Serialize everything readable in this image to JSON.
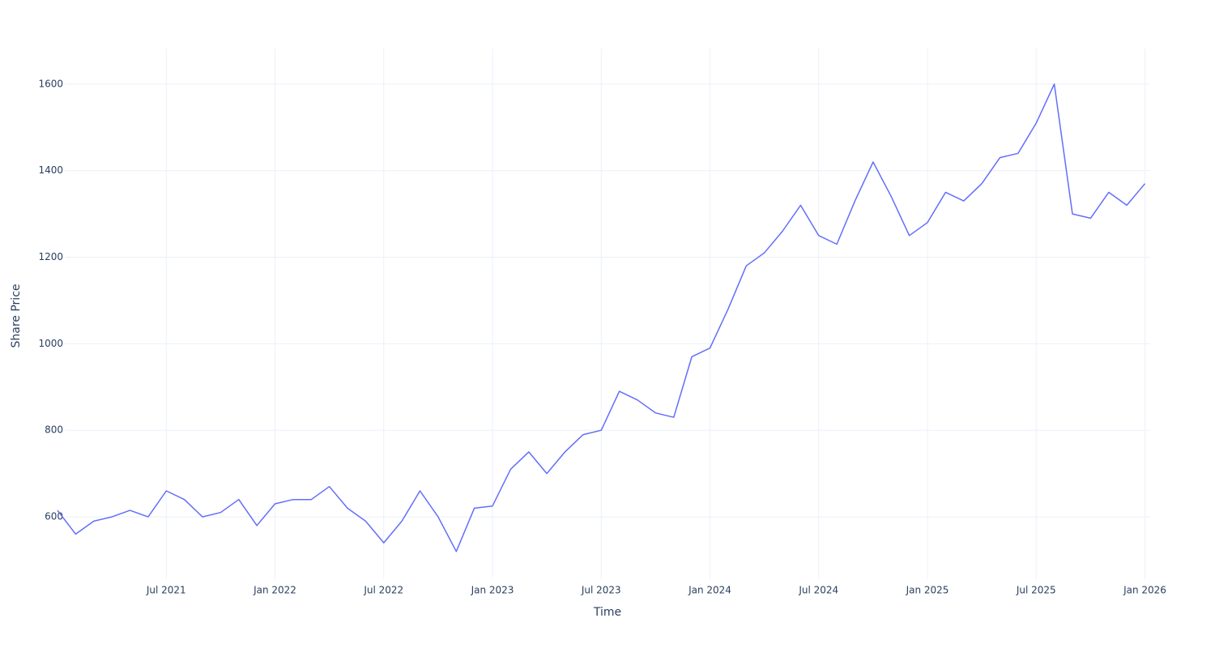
{
  "chart_data": {
    "type": "line",
    "x_label": "Time",
    "y_label": "Share Price",
    "x": [
      "2021-01",
      "2021-02",
      "2021-03",
      "2021-04",
      "2021-05",
      "2021-06",
      "2021-07",
      "2021-08",
      "2021-09",
      "2021-10",
      "2021-11",
      "2021-12",
      "2022-01",
      "2022-02",
      "2022-03",
      "2022-04",
      "2022-05",
      "2022-06",
      "2022-07",
      "2022-08",
      "2022-09",
      "2022-10",
      "2022-11",
      "2022-12",
      "2023-01",
      "2023-02",
      "2023-03",
      "2023-04",
      "2023-05",
      "2023-06",
      "2023-07",
      "2023-08",
      "2023-09",
      "2023-10",
      "2023-11",
      "2023-12",
      "2024-01",
      "2024-02",
      "2024-03",
      "2024-04",
      "2024-05",
      "2024-06",
      "2024-07",
      "2024-08",
      "2024-09",
      "2024-10",
      "2024-11",
      "2024-12",
      "2025-01",
      "2025-02",
      "2025-03",
      "2025-04",
      "2025-05",
      "2025-06",
      "2025-07",
      "2025-08",
      "2025-09",
      "2025-10",
      "2025-11",
      "2025-12",
      "2026-01"
    ],
    "series": [
      {
        "name": "Share Price",
        "color": "#636efa",
        "values": [
          615,
          560,
          590,
          600,
          615,
          600,
          660,
          640,
          600,
          610,
          640,
          580,
          630,
          640,
          640,
          670,
          620,
          590,
          540,
          590,
          660,
          600,
          520,
          620,
          625,
          710,
          750,
          700,
          750,
          790,
          800,
          890,
          870,
          840,
          830,
          970,
          990,
          1080,
          1180,
          1210,
          1260,
          1320,
          1250,
          1230,
          1330,
          1420,
          1340,
          1250,
          1280,
          1350,
          1330,
          1370,
          1430,
          1440,
          1510,
          1600,
          1300,
          1290,
          1350,
          1320,
          1370
        ]
      }
    ],
    "xlim": [
      "2021-01",
      "2026-01"
    ],
    "xticks": [
      {
        "value": "2021-07",
        "label": "Jul 2021"
      },
      {
        "value": "2022-01",
        "label": "Jan 2022"
      },
      {
        "value": "2022-07",
        "label": "Jul 2022"
      },
      {
        "value": "2023-01",
        "label": "Jan 2023"
      },
      {
        "value": "2023-07",
        "label": "Jul 2023"
      },
      {
        "value": "2024-01",
        "label": "Jan 2024"
      },
      {
        "value": "2024-07",
        "label": "Jul 2024"
      },
      {
        "value": "2025-01",
        "label": "Jan 2025"
      },
      {
        "value": "2025-07",
        "label": "Jul 2025"
      },
      {
        "value": "2026-01",
        "label": "Jan 2026"
      }
    ],
    "ylim": [
      456,
      1682
    ],
    "yticks": [
      600,
      800,
      1000,
      1200,
      1400,
      1600
    ],
    "grid": true
  }
}
